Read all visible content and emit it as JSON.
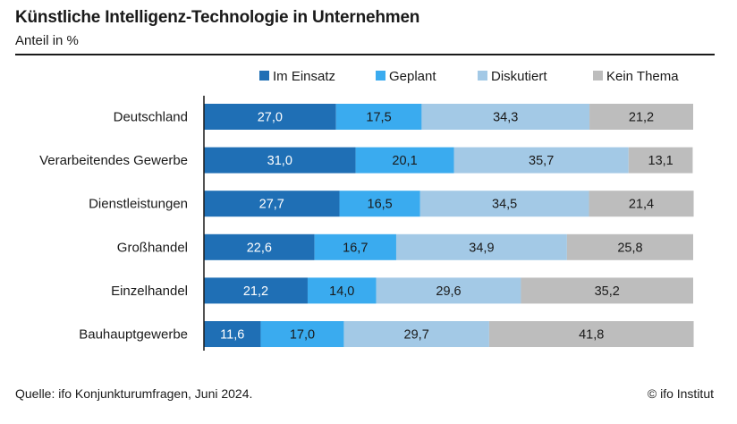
{
  "header": {
    "title": "Künstliche Intelligenz-Technologie in Unternehmen",
    "subtitle": "Anteil in %"
  },
  "footer": {
    "source": "Quelle: ifo Konjunkturumfragen, Juni 2024.",
    "credit": "© ifo Institut"
  },
  "colors": {
    "im_einsatz": "#1f6fb5",
    "geplant": "#3aabef",
    "diskutiert": "#a3c9e6",
    "kein_thema": "#bdbdbd",
    "label_light": "#ffffff",
    "label_dark": "#1a1a1a"
  },
  "chart_data": {
    "type": "bar",
    "orientation": "horizontal",
    "stacked": true,
    "title": "Künstliche Intelligenz-Technologie in Unternehmen",
    "subtitle": "Anteil in %",
    "xlabel": "",
    "ylabel": "",
    "xlim": [
      0,
      100
    ],
    "grid": false,
    "legend_position": "top",
    "categories": [
      "Deutschland",
      "Verarbeitendes Gewerbe",
      "Dienstleistungen",
      "Großhandel",
      "Einzelhandel",
      "Bauhauptgewerbe"
    ],
    "series": [
      {
        "name": "Im Einsatz",
        "color_key": "im_einsatz",
        "label_color_key": "label_light",
        "values": [
          27.0,
          31.0,
          27.7,
          22.6,
          21.2,
          11.6
        ],
        "labels": [
          "27,0",
          "31,0",
          "27,7",
          "22,6",
          "21,2",
          "11,6"
        ]
      },
      {
        "name": "Geplant",
        "color_key": "geplant",
        "label_color_key": "label_dark",
        "values": [
          17.5,
          20.1,
          16.5,
          16.7,
          14.0,
          17.0
        ],
        "labels": [
          "17,5",
          "20,1",
          "16,5",
          "16,7",
          "14,0",
          "17,0"
        ]
      },
      {
        "name": "Diskutiert",
        "color_key": "diskutiert",
        "label_color_key": "label_dark",
        "values": [
          34.3,
          35.7,
          34.5,
          34.9,
          29.6,
          29.7
        ],
        "labels": [
          "34,3",
          "35,7",
          "34,5",
          "34,9",
          "29,6",
          "29,7"
        ]
      },
      {
        "name": "Kein Thema",
        "color_key": "kein_thema",
        "label_color_key": "label_dark",
        "values": [
          21.2,
          13.1,
          21.4,
          25.8,
          35.2,
          41.8
        ],
        "labels": [
          "21,2",
          "13,1",
          "21,4",
          "25,8",
          "35,2",
          "41,8"
        ]
      }
    ]
  }
}
